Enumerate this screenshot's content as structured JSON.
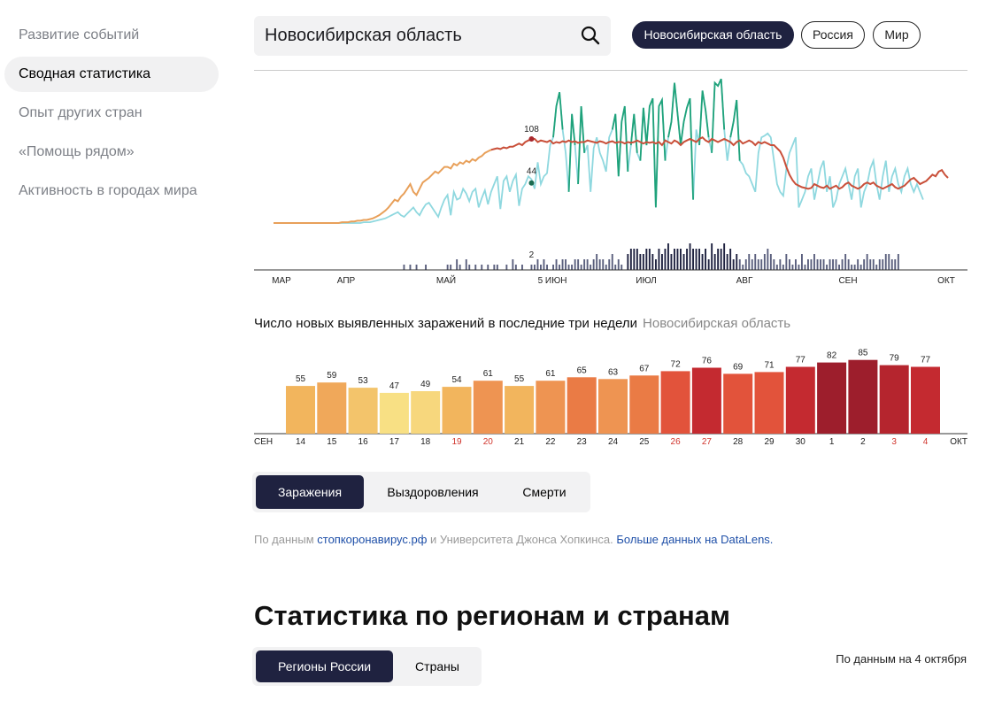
{
  "sidebar": {
    "items": [
      {
        "label": "Развитие событий",
        "active": false
      },
      {
        "label": "Сводная статистика",
        "active": true
      },
      {
        "label": "Опыт других стран",
        "active": false
      },
      {
        "label": "«Помощь рядом»",
        "active": false
      },
      {
        "label": "Активность в городах мира",
        "active": false
      }
    ]
  },
  "search": {
    "value": "Новосибирская область",
    "icon": "search-icon"
  },
  "scope_pills": [
    {
      "label": "Новосибирская область",
      "active": true
    },
    {
      "label": "Россия",
      "active": false
    },
    {
      "label": "Мир",
      "active": false
    }
  ],
  "colors": {
    "dark": "#1f2240",
    "new_cases_line": "#c9503a",
    "new_cases_line_early": "#e8a05a",
    "recovered_line": "#8fd8df",
    "recovered_line_dark": "#1fa27a",
    "deaths_bars": "#5a5f7d",
    "deaths_bars_dark": "#1f2240",
    "link": "#1e4fa8"
  },
  "chart_data": [
    {
      "type": "line",
      "x_ticks": [
        "МАР",
        "АПР",
        "МАЙ",
        "5 ИЮН",
        "ИЮЛ",
        "АВГ",
        "СЕН",
        "ОКТ"
      ],
      "highlight": {
        "date": "5 ИЮН",
        "new_cases": 108,
        "recovered": 44,
        "deaths": 2
      },
      "series": [
        {
          "key": "new_cases",
          "values": [
            0,
            0,
            0,
            0,
            0,
            0,
            0,
            0,
            0,
            0,
            0,
            0,
            0,
            0,
            0,
            0,
            0,
            0,
            0,
            0,
            0,
            0,
            1,
            1,
            1,
            2,
            2,
            3,
            3,
            4,
            4,
            5,
            6,
            8,
            10,
            13,
            16,
            20,
            25,
            30,
            28,
            34,
            38,
            44,
            50,
            40,
            36,
            44,
            52,
            55,
            58,
            62,
            66,
            64,
            68,
            72,
            72,
            70,
            76,
            74,
            78,
            76,
            80,
            78,
            82,
            80,
            84,
            86,
            90,
            92,
            94,
            95,
            96,
            95,
            97,
            96,
            98,
            98,
            100,
            102,
            100,
            104,
            106,
            108,
            108,
            104,
            106,
            105,
            104,
            106,
            102,
            104,
            103,
            105,
            104,
            106,
            104,
            105,
            103,
            104,
            104,
            106,
            105,
            104,
            103,
            105,
            104,
            102,
            104,
            105,
            103,
            104,
            104,
            102,
            104,
            103,
            104,
            106,
            104,
            102,
            104,
            103,
            104,
            102,
            104,
            100,
            106,
            104,
            102,
            106,
            104,
            100,
            104,
            106,
            108,
            106,
            104,
            108,
            110,
            106,
            104,
            108,
            106,
            104,
            106,
            108,
            106,
            104,
            100,
            104,
            106,
            102,
            104,
            106,
            104,
            100,
            104,
            102,
            104,
            102,
            100,
            100,
            96,
            92,
            84,
            72,
            62,
            55,
            50,
            48,
            46,
            45,
            44,
            45,
            50,
            48,
            46,
            45,
            48,
            44,
            46,
            48,
            44,
            46,
            50,
            52,
            48,
            46,
            44,
            46,
            50,
            52,
            50,
            52,
            48,
            46,
            44,
            46,
            48,
            50,
            46,
            44,
            46,
            48,
            52,
            56,
            58,
            54,
            50,
            52,
            54,
            58,
            62,
            60,
            66,
            68,
            62,
            58
          ]
        },
        {
          "key": "recovered",
          "values": [
            0,
            0,
            0,
            0,
            0,
            0,
            0,
            0,
            0,
            0,
            0,
            0,
            0,
            0,
            0,
            0,
            0,
            0,
            0,
            0,
            0,
            0,
            0,
            0,
            0,
            0,
            0,
            0,
            0,
            1,
            1,
            1,
            2,
            3,
            4,
            5,
            6,
            8,
            10,
            12,
            14,
            10,
            8,
            12,
            16,
            20,
            14,
            10,
            18,
            24,
            26,
            20,
            14,
            8,
            20,
            30,
            36,
            10,
            40,
            30,
            32,
            44,
            38,
            28,
            40,
            44,
            20,
            32,
            42,
            24,
            40,
            50,
            60,
            18,
            54,
            60,
            40,
            54,
            62,
            22,
            44,
            50,
            60,
            56,
            44,
            78,
            50,
            60,
            64,
            100,
            110,
            150,
            168,
            120,
            90,
            40,
            140,
            100,
            50,
            150,
            90,
            100,
            40,
            96,
            110,
            90,
            80,
            66,
            110,
            120,
            140,
            60,
            130,
            150,
            66,
            100,
            140,
            90,
            80,
            148,
            100,
            150,
            160,
            20,
            150,
            158,
            80,
            110,
            130,
            180,
            140,
            100,
            130,
            148,
            160,
            30,
            120,
            100,
            170,
            145,
            110,
            90,
            180,
            176,
            185,
            120,
            80,
            110,
            130,
            158,
            80,
            75,
            64,
            60,
            50,
            40,
            90,
            110,
            112,
            115,
            110,
            80,
            50,
            40,
            35,
            70,
            90,
            100,
            110,
            20,
            30,
            40,
            60,
            70,
            30,
            50,
            70,
            80,
            40,
            60,
            20,
            30,
            50,
            60,
            70,
            50,
            30,
            60,
            70,
            20,
            40,
            50,
            70,
            80,
            50,
            30,
            60,
            80,
            40,
            60,
            70,
            50,
            40,
            60,
            70,
            50,
            40,
            50,
            40,
            30
          ]
        },
        {
          "key": "deaths",
          "values": [
            0,
            0,
            0,
            0,
            0,
            0,
            0,
            0,
            0,
            0,
            0,
            0,
            0,
            0,
            0,
            0,
            0,
            0,
            0,
            0,
            0,
            0,
            0,
            0,
            0,
            0,
            0,
            0,
            0,
            0,
            0,
            0,
            0,
            0,
            0,
            0,
            0,
            0,
            0,
            0,
            0,
            0,
            1,
            0,
            1,
            0,
            1,
            0,
            0,
            1,
            0,
            0,
            0,
            0,
            0,
            0,
            1,
            1,
            0,
            2,
            1,
            0,
            2,
            1,
            0,
            1,
            0,
            1,
            0,
            1,
            0,
            1,
            1,
            0,
            0,
            1,
            0,
            2,
            1,
            0,
            1,
            0,
            0,
            1,
            1,
            2,
            1,
            2,
            1,
            0,
            1,
            2,
            1,
            2,
            2,
            1,
            1,
            2,
            2,
            1,
            2,
            2,
            1,
            2,
            3,
            2,
            2,
            1,
            2,
            3,
            1,
            2,
            1,
            0,
            3,
            4,
            4,
            4,
            3,
            3,
            4,
            4,
            3,
            2,
            4,
            3,
            4,
            5,
            3,
            4,
            4,
            4,
            3,
            4,
            5,
            4,
            4,
            4,
            3,
            4,
            2,
            5,
            3,
            4,
            4,
            5,
            3,
            4,
            2,
            3,
            2,
            1,
            2,
            3,
            2,
            3,
            2,
            2,
            3,
            4,
            3,
            2,
            1,
            2,
            1,
            3,
            2,
            1,
            2,
            1,
            3,
            1,
            2,
            2,
            3,
            2,
            2,
            2,
            1,
            2,
            2,
            2,
            1,
            2,
            3,
            2,
            1,
            1,
            2,
            1,
            2,
            3,
            2,
            2,
            1,
            2,
            2,
            3,
            3,
            2,
            2,
            3
          ]
        }
      ]
    },
    {
      "type": "bar",
      "title": "Число новых выявленных заражений в последние три недели",
      "title_region": "Новосибирская область",
      "x_start_label": "СЕН",
      "x_end_label": "ОКТ",
      "categories": [
        "14",
        "15",
        "16",
        "17",
        "18",
        "19",
        "20",
        "21",
        "22",
        "23",
        "24",
        "25",
        "26",
        "27",
        "28",
        "29",
        "30",
        "1",
        "2",
        "3",
        "4"
      ],
      "values": [
        55,
        59,
        53,
        47,
        49,
        54,
        61,
        55,
        61,
        65,
        63,
        67,
        72,
        76,
        69,
        71,
        77,
        82,
        85,
        79,
        77
      ],
      "weekend": [
        false,
        false,
        false,
        false,
        false,
        true,
        true,
        false,
        false,
        false,
        false,
        false,
        true,
        true,
        false,
        false,
        false,
        false,
        false,
        true,
        true
      ],
      "bar_colors": [
        "#f2b55d",
        "#f0a85a",
        "#f3c46b",
        "#f8e084",
        "#f7d77d",
        "#f2b55d",
        "#ee9452",
        "#f2b55d",
        "#ee9452",
        "#ea7b45",
        "#ee9452",
        "#ea7b45",
        "#e2533b",
        "#c42a30",
        "#e2533b",
        "#e2533b",
        "#c42a30",
        "#9d1e2c",
        "#9d1e2c",
        "#b5252e",
        "#c42a30"
      ],
      "ylim": [
        0,
        100
      ]
    }
  ],
  "metric_tabs": [
    {
      "label": "Заражения",
      "active": true
    },
    {
      "label": "Выздоровления",
      "active": false
    },
    {
      "label": "Смерти",
      "active": false
    }
  ],
  "source": {
    "prefix": "По данным ",
    "link1": "стопкоронавирус.рф",
    "middle": " и Университета Джонса Хопкинса. ",
    "link2": "Больше данных на DataLens."
  },
  "section": {
    "title": "Статистика по регионам и странам",
    "tabs": [
      {
        "label": "Регионы России",
        "active": true
      },
      {
        "label": "Страны",
        "active": false
      }
    ],
    "as_of": "По данным на 4 октября"
  }
}
